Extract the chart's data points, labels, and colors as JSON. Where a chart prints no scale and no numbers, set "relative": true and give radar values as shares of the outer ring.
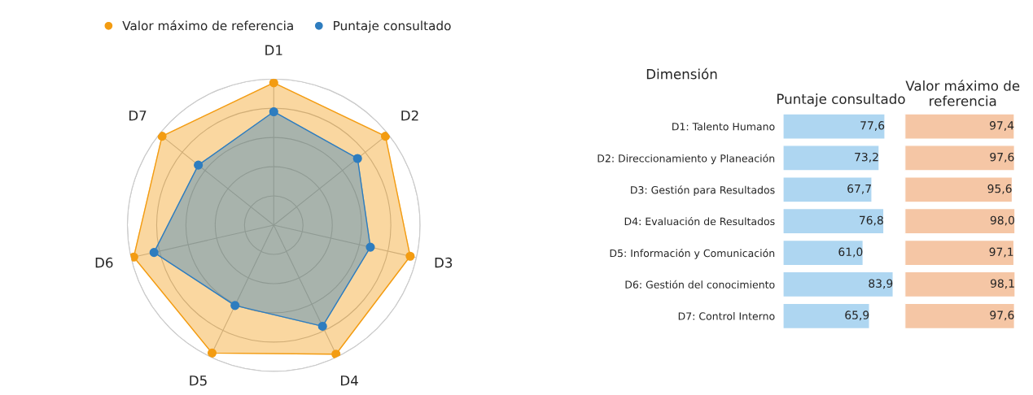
{
  "chart_data": [
    {
      "type": "radar",
      "categories": [
        "D1",
        "D2",
        "D3",
        "D4",
        "D5",
        "D6",
        "D7"
      ],
      "series": [
        {
          "name": "Valor máximo de referencia",
          "color": "#f39c12",
          "values": [
            0.974,
            0.976,
            0.956,
            0.98,
            0.971,
            0.981,
            0.976
          ]
        },
        {
          "name": "Puntaje consultado",
          "color": "#2e7dbf",
          "values": [
            0.776,
            0.732,
            0.677,
            0.768,
            0.61,
            0.839,
            0.659
          ]
        }
      ],
      "relative": true,
      "legend": "top",
      "marker": "circle",
      "grid": true,
      "tick_labels": "x"
    },
    {
      "type": "bar",
      "orientation": "horizontal",
      "title": "Puntaje consultado",
      "ylabel": "Dimensión",
      "categories": [
        "D1: Talento Humano",
        "D2: Direccionamiento y Planeación",
        "D3: Gestión para Resultados",
        "D4: Evaluación de Resultados",
        "D5: Información y Comunicación",
        "D6: Gestión del conocimiento",
        "D7: Control Interno"
      ],
      "series": [
        {
          "color": "#aed6f1",
          "values": [
            77.6,
            73.2,
            67.7,
            76.8,
            61.0,
            83.9,
            65.9
          ],
          "value_labels": [
            "77,6",
            "73,2",
            "67,7",
            "76,8",
            "61,0",
            "83,9",
            "65,9"
          ]
        }
      ],
      "tick_labels": "y"
    },
    {
      "type": "bar",
      "orientation": "horizontal",
      "title": "Valor máximo de referencia",
      "categories": [
        null,
        null,
        null,
        null,
        null,
        null,
        null
      ],
      "series": [
        {
          "color": "#f5c6a5",
          "values": [
            97.4,
            97.6,
            95.6,
            98.0,
            97.1,
            98.1,
            97.6
          ],
          "value_labels": [
            "97,4",
            "97,6",
            "95,6",
            "98,0",
            "97,1",
            "98,1",
            "97,6"
          ]
        }
      ],
      "tick_labels": false
    }
  ]
}
